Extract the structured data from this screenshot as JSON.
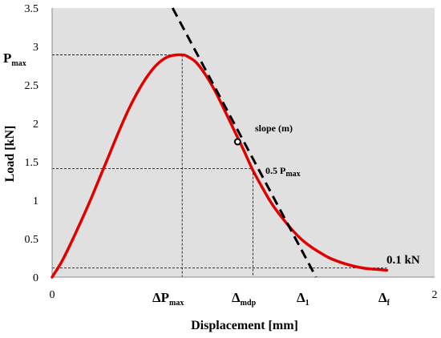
{
  "chart_data": {
    "type": "line",
    "title": "",
    "xlabel": "Displacement [mm]",
    "ylabel": "Load [kN]",
    "xlim": [
      0,
      2
    ],
    "ylim": [
      0,
      3.5
    ],
    "x_ticks": [
      0,
      2
    ],
    "y_ticks": [
      0,
      0.5,
      1,
      1.5,
      2,
      2.5,
      3,
      3.5
    ],
    "y_tick_labels": [
      "0",
      "0.5",
      "1",
      "1.5",
      "2",
      "2.5",
      "3",
      "3.5"
    ],
    "x_tick_labels": [
      "0",
      "2"
    ],
    "grid": false,
    "background": "#e0e0e0",
    "series": [
      {
        "color": "#e00000",
        "x": [
          0,
          0.05,
          0.1,
          0.15,
          0.2,
          0.25,
          0.3,
          0.35,
          0.4,
          0.45,
          0.5,
          0.55,
          0.6,
          0.65,
          0.68,
          0.7,
          0.75,
          0.8,
          0.85,
          0.9,
          0.95,
          1.0,
          1.05,
          1.1,
          1.15,
          1.2,
          1.25,
          1.3,
          1.35,
          1.4,
          1.45,
          1.5,
          1.55,
          1.6,
          1.65,
          1.7,
          1.75
        ],
        "y": [
          0,
          0.2,
          0.45,
          0.72,
          1.0,
          1.3,
          1.6,
          1.9,
          2.18,
          2.42,
          2.62,
          2.77,
          2.86,
          2.89,
          2.89,
          2.88,
          2.8,
          2.64,
          2.43,
          2.18,
          1.92,
          1.66,
          1.39,
          1.16,
          0.95,
          0.78,
          0.63,
          0.5,
          0.4,
          0.32,
          0.25,
          0.2,
          0.16,
          0.13,
          0.11,
          0.1,
          0.09
        ]
      }
    ],
    "tangent_line": {
      "style": "dashed",
      "color": "#000000",
      "x": [
        0.63,
        1.38
      ],
      "y": [
        3.5,
        0
      ]
    },
    "tangent_point": {
      "x": 0.97,
      "y": 1.76
    },
    "reference_lines": [
      {
        "from": [
          0,
          2.89
        ],
        "to": [
          0.68,
          2.89
        ]
      },
      {
        "from": [
          0.68,
          2.89
        ],
        "to": [
          0.68,
          0
        ]
      },
      {
        "from": [
          0,
          1.41
        ],
        "to": [
          1.05,
          1.41
        ]
      },
      {
        "from": [
          1.05,
          1.41
        ],
        "to": [
          1.05,
          0
        ]
      },
      {
        "from": [
          0,
          0.12
        ],
        "to": [
          1.75,
          0.12
        ]
      }
    ],
    "annotations": {
      "pmax_main": "P",
      "pmax_sub": "max",
      "slope": "slope (m)",
      "half_main": "0.5 P",
      "half_sub": "max",
      "end_load": "0.1 kN",
      "dpmax_main": "ΔP",
      "dpmax_sub": "max",
      "dmdp_main": "Δ",
      "dmdp_sub": "mdp",
      "d1_main": "Δ",
      "d1_sub": "1",
      "df_main": "Δ",
      "df_sub": "f"
    }
  }
}
